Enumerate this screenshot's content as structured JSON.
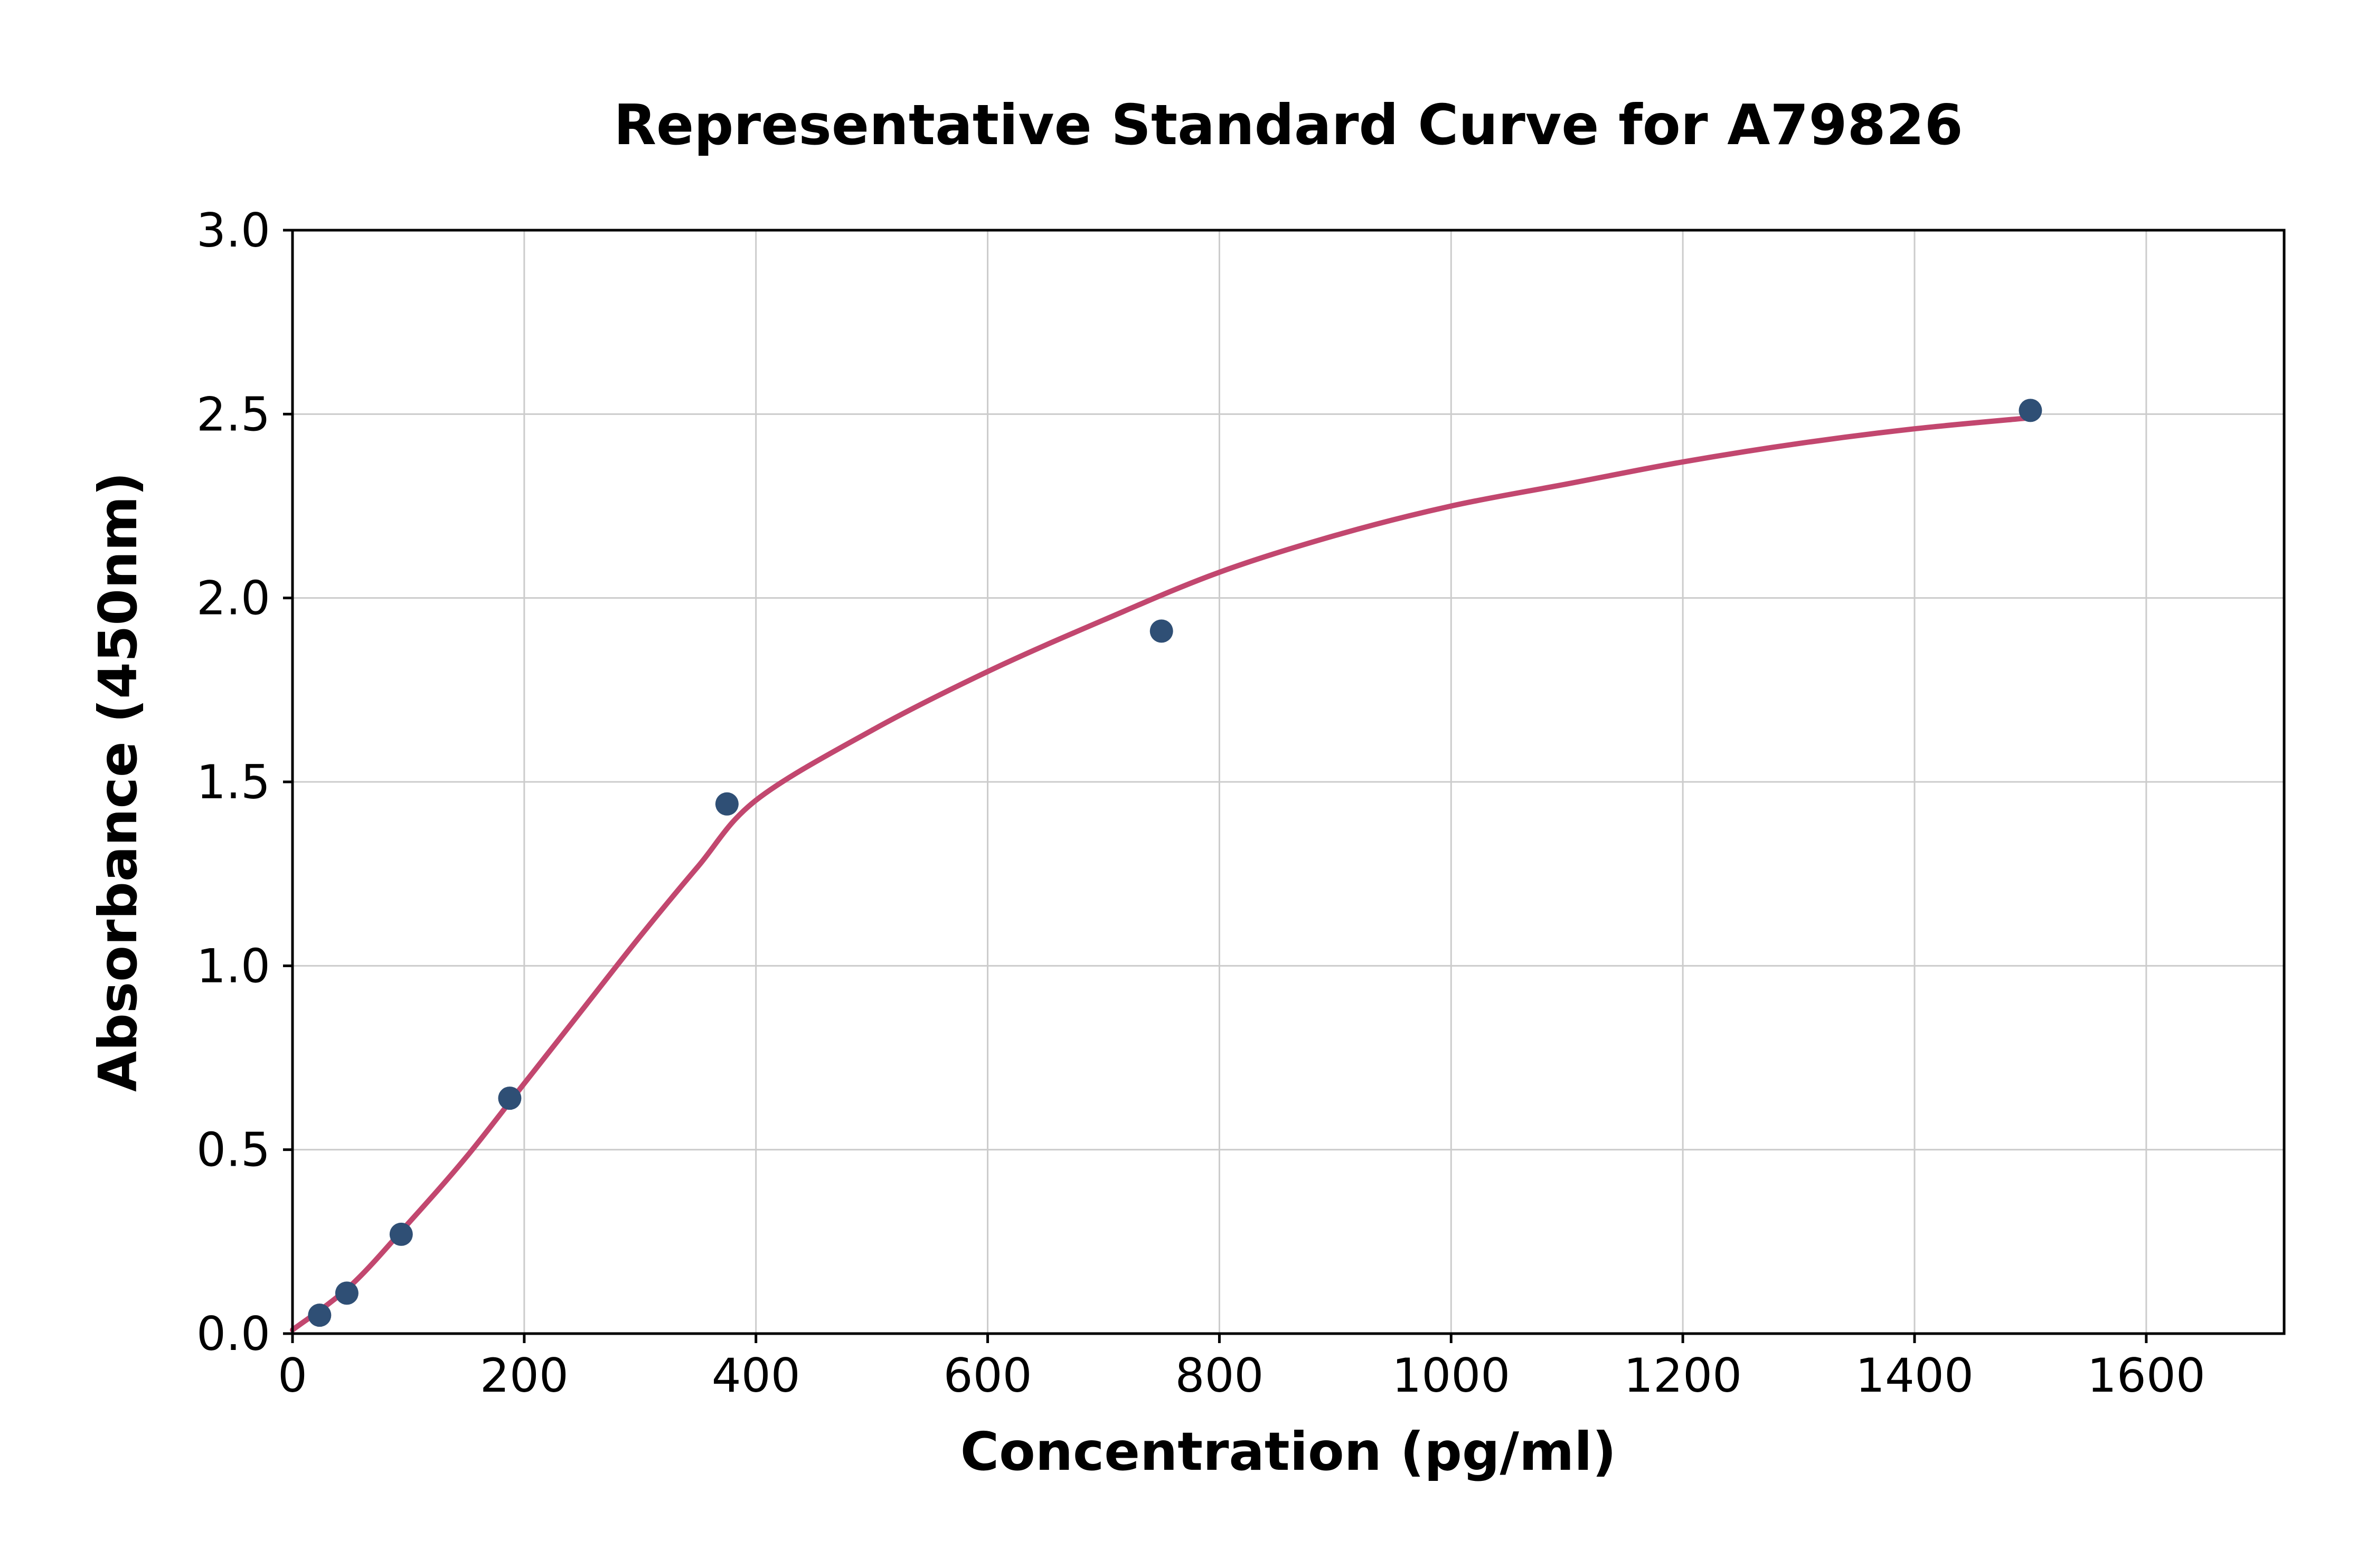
{
  "figure": {
    "background": "#ffffff"
  },
  "chart_data": {
    "type": "scatter",
    "title": "Representative Standard Curve for A79826",
    "xlabel": "Concentration (pg/ml)",
    "ylabel": "Absorbance (450nm)",
    "xlim": [
      0,
      1719
    ],
    "ylim": [
      0,
      3.0
    ],
    "x_ticks": [
      0,
      200,
      400,
      600,
      800,
      1000,
      1200,
      1400,
      1600
    ],
    "x_tick_labels": [
      "0",
      "200",
      "400",
      "600",
      "800",
      "1000",
      "1200",
      "1400",
      "1600"
    ],
    "y_ticks": [
      0.0,
      0.5,
      1.0,
      1.5,
      2.0,
      2.5,
      3.0
    ],
    "y_tick_labels": [
      "0.0",
      "0.5",
      "1.0",
      "1.5",
      "2.0",
      "2.5",
      "3.0"
    ],
    "grid": true,
    "legend": "none",
    "colors": {
      "grid": "#cccccc",
      "axes": "#000000",
      "fit_line": "#c2476f",
      "points": "#2f4f75"
    },
    "series": [
      {
        "name": "4pl-fit-curve",
        "type": "line",
        "color": "#c2476f",
        "line_width": 10,
        "points": [
          [
            0,
            0.01
          ],
          [
            50,
            0.13
          ],
          [
            100,
            0.3
          ],
          [
            150,
            0.48
          ],
          [
            200,
            0.68
          ],
          [
            250,
            0.88
          ],
          [
            300,
            1.08
          ],
          [
            350,
            1.27
          ],
          [
            400,
            1.45
          ],
          [
            500,
            1.64
          ],
          [
            600,
            1.8
          ],
          [
            700,
            1.94
          ],
          [
            800,
            2.07
          ],
          [
            900,
            2.17
          ],
          [
            1000,
            2.25
          ],
          [
            1100,
            2.31
          ],
          [
            1200,
            2.37
          ],
          [
            1300,
            2.42
          ],
          [
            1400,
            2.46
          ],
          [
            1500,
            2.49
          ]
        ]
      },
      {
        "name": "standard-points",
        "type": "scatter",
        "color": "#2f4f75",
        "marker_size": 22,
        "points": [
          [
            23.4,
            0.05
          ],
          [
            46.9,
            0.11
          ],
          [
            93.8,
            0.27
          ],
          [
            187.5,
            0.64
          ],
          [
            375,
            1.44
          ],
          [
            750,
            1.91
          ],
          [
            1500,
            2.51
          ]
        ]
      }
    ]
  }
}
